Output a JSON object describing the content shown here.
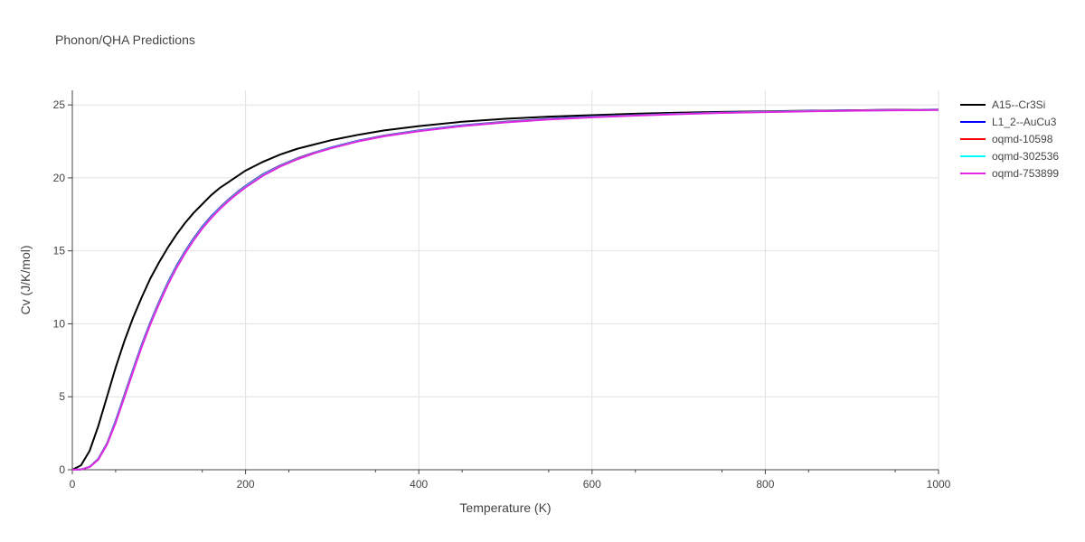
{
  "chart_data": {
    "type": "line",
    "title": "Phonon/QHA Predictions",
    "xlabel": "Temperature (K)",
    "ylabel": "Cv (J/K/mol)",
    "xlim": [
      0,
      1000
    ],
    "ylim": [
      0,
      26
    ],
    "xticks": [
      0,
      200,
      400,
      600,
      800,
      1000
    ],
    "yticks": [
      0,
      5,
      10,
      15,
      20,
      25
    ],
    "grid": true,
    "legend_position": "top-right",
    "series": [
      {
        "name": "A15--Cr3Si",
        "color": "#000000",
        "x": [
          0,
          10,
          20,
          30,
          40,
          50,
          60,
          70,
          80,
          90,
          100,
          110,
          120,
          130,
          140,
          150,
          160,
          170,
          180,
          190,
          200,
          220,
          240,
          260,
          280,
          300,
          330,
          360,
          400,
          450,
          500,
          550,
          600,
          650,
          700,
          750,
          800,
          850,
          900,
          950,
          1000
        ],
        "y": [
          0,
          0.3,
          1.3,
          3.0,
          5.0,
          7.0,
          8.8,
          10.4,
          11.8,
          13.1,
          14.2,
          15.2,
          16.1,
          16.9,
          17.6,
          18.2,
          18.8,
          19.3,
          19.7,
          20.1,
          20.5,
          21.1,
          21.6,
          22.0,
          22.3,
          22.6,
          22.95,
          23.25,
          23.55,
          23.85,
          24.05,
          24.2,
          24.3,
          24.4,
          24.47,
          24.52,
          24.56,
          24.6,
          24.63,
          24.66,
          24.68
        ]
      },
      {
        "name": "L1_2--AuCu3",
        "color": "#0000ff",
        "x": [
          0,
          10,
          20,
          30,
          40,
          50,
          60,
          70,
          80,
          90,
          100,
          110,
          120,
          130,
          140,
          150,
          160,
          170,
          180,
          190,
          200,
          220,
          240,
          260,
          280,
          300,
          330,
          360,
          400,
          450,
          500,
          550,
          600,
          650,
          700,
          750,
          800,
          850,
          900,
          950,
          1000
        ],
        "y": [
          0,
          0.02,
          0.2,
          0.75,
          1.8,
          3.35,
          5.1,
          6.85,
          8.55,
          10.1,
          11.5,
          12.8,
          13.95,
          14.95,
          15.85,
          16.65,
          17.35,
          17.95,
          18.5,
          19.0,
          19.45,
          20.25,
          20.85,
          21.35,
          21.75,
          22.1,
          22.55,
          22.9,
          23.25,
          23.6,
          23.85,
          24.05,
          24.2,
          24.3,
          24.4,
          24.48,
          24.54,
          24.59,
          24.63,
          24.66,
          24.68
        ]
      },
      {
        "name": "oqmd-10598",
        "color": "#ff0000",
        "x": [
          0,
          10,
          20,
          30,
          40,
          50,
          60,
          70,
          80,
          90,
          100,
          110,
          120,
          130,
          140,
          150,
          160,
          170,
          180,
          190,
          200,
          220,
          240,
          260,
          280,
          300,
          330,
          360,
          400,
          450,
          500,
          550,
          600,
          650,
          700,
          750,
          800,
          850,
          900,
          950,
          1000
        ],
        "y": [
          0,
          0.02,
          0.2,
          0.73,
          1.78,
          3.3,
          5.05,
          6.8,
          8.5,
          10.05,
          11.45,
          12.75,
          13.9,
          14.9,
          15.8,
          16.6,
          17.3,
          17.92,
          18.47,
          18.97,
          19.42,
          20.22,
          20.83,
          21.33,
          21.73,
          22.08,
          22.53,
          22.88,
          23.23,
          23.58,
          23.83,
          24.03,
          24.18,
          24.29,
          24.39,
          24.47,
          24.53,
          24.58,
          24.62,
          24.65,
          24.67
        ]
      },
      {
        "name": "oqmd-302536",
        "color": "#00ffff",
        "x": [
          0,
          10,
          20,
          30,
          40,
          50,
          60,
          70,
          80,
          90,
          100,
          110,
          120,
          130,
          140,
          150,
          160,
          170,
          180,
          190,
          200,
          220,
          240,
          260,
          280,
          300,
          330,
          360,
          400,
          450,
          500,
          550,
          600,
          650,
          700,
          750,
          800,
          850,
          900,
          950,
          1000
        ],
        "y": [
          0,
          0.02,
          0.19,
          0.72,
          1.76,
          3.28,
          5.02,
          6.77,
          8.47,
          10.02,
          11.42,
          12.72,
          13.87,
          14.88,
          15.78,
          16.58,
          17.28,
          17.9,
          18.45,
          18.95,
          19.4,
          20.2,
          20.81,
          21.31,
          21.72,
          22.07,
          22.52,
          22.87,
          23.22,
          23.57,
          23.82,
          24.02,
          24.17,
          24.28,
          24.38,
          24.46,
          24.52,
          24.57,
          24.61,
          24.64,
          24.66
        ]
      },
      {
        "name": "oqmd-753899",
        "color": "#e026e0",
        "x": [
          0,
          10,
          20,
          30,
          40,
          50,
          60,
          70,
          80,
          90,
          100,
          110,
          120,
          130,
          140,
          150,
          160,
          170,
          180,
          190,
          200,
          220,
          240,
          260,
          280,
          300,
          330,
          360,
          400,
          450,
          500,
          550,
          600,
          650,
          700,
          750,
          800,
          850,
          900,
          950,
          1000
        ],
        "y": [
          0,
          0.02,
          0.18,
          0.7,
          1.72,
          3.22,
          4.95,
          6.7,
          8.4,
          9.95,
          11.35,
          12.65,
          13.8,
          14.82,
          15.72,
          16.53,
          17.23,
          17.85,
          18.4,
          18.9,
          19.35,
          20.15,
          20.78,
          21.28,
          21.7,
          22.05,
          22.5,
          22.85,
          23.2,
          23.55,
          23.8,
          24.0,
          24.15,
          24.27,
          24.37,
          24.45,
          24.51,
          24.56,
          24.6,
          24.63,
          24.65
        ]
      }
    ]
  }
}
